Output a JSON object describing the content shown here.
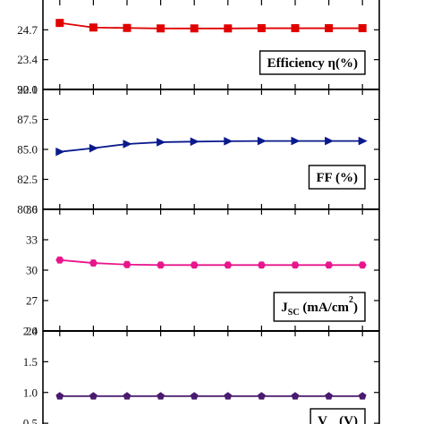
{
  "chart_data": [
    {
      "type": "line",
      "label_parts": [
        {
          "text": "Efficiency  η(%)",
          "style": "normal"
        }
      ],
      "y_ticks": [
        {
          "value": 22.1,
          "label": "22.1"
        },
        {
          "value": 23.4,
          "label": "23.4"
        },
        {
          "value": 24.7,
          "label": "24.7"
        }
      ],
      "ylim": [
        22.1,
        26.0
      ],
      "color": "#e00000",
      "marker": "square",
      "x": [
        1,
        2,
        3,
        4,
        5,
        6,
        7,
        8,
        9,
        10
      ],
      "values": [
        25.0,
        24.8,
        24.78,
        24.76,
        24.76,
        24.76,
        24.77,
        24.77,
        24.77,
        24.77
      ]
    },
    {
      "type": "line",
      "label_parts": [
        {
          "text": "FF (%)",
          "style": "normal"
        }
      ],
      "y_ticks": [
        {
          "value": 80.0,
          "label": "80.0"
        },
        {
          "value": 82.5,
          "label": "82.5"
        },
        {
          "value": 85.0,
          "label": "85.0"
        },
        {
          "value": 87.5,
          "label": "87.5"
        },
        {
          "value": 90.0,
          "label": "90.0"
        }
      ],
      "ylim": [
        80.0,
        90.0
      ],
      "color": "#0a1a8c",
      "marker": "triangle-right",
      "x": [
        1,
        2,
        3,
        4,
        5,
        6,
        7,
        8,
        9,
        10
      ],
      "values": [
        84.8,
        85.1,
        85.45,
        85.6,
        85.65,
        85.68,
        85.7,
        85.7,
        85.7,
        85.7
      ]
    },
    {
      "type": "line",
      "label_parts": [
        {
          "text": "J",
          "style": "normal"
        },
        {
          "text": "SC",
          "style": "sub"
        },
        {
          "text": " (mA/cm",
          "style": "normal"
        },
        {
          "text": "2",
          "style": "sup"
        },
        {
          "text": ")",
          "style": "normal"
        }
      ],
      "y_ticks": [
        {
          "value": 24,
          "label": "24"
        },
        {
          "value": 27,
          "label": "27"
        },
        {
          "value": 30,
          "label": "30"
        },
        {
          "value": 33,
          "label": "33"
        },
        {
          "value": 36,
          "label": "36"
        }
      ],
      "ylim": [
        24,
        36
      ],
      "color": "#e8168c",
      "marker": "hexagon",
      "x": [
        1,
        2,
        3,
        4,
        5,
        6,
        7,
        8,
        9,
        10
      ],
      "values": [
        31.0,
        30.7,
        30.55,
        30.5,
        30.5,
        30.5,
        30.5,
        30.5,
        30.5,
        30.5
      ]
    },
    {
      "type": "line",
      "label_parts": [
        {
          "text": "V",
          "style": "normal"
        },
        {
          "text": "oc",
          "style": "sub"
        },
        {
          "text": " (V)",
          "style": "normal"
        }
      ],
      "y_ticks": [
        {
          "value": 0.5,
          "label": "0.5"
        },
        {
          "value": 1.0,
          "label": "1.0"
        },
        {
          "value": 1.5,
          "label": "1.5"
        },
        {
          "value": 2.0,
          "label": "2.0"
        }
      ],
      "ylim": [
        0.4,
        2.0
      ],
      "color": "#4a1a6e",
      "marker": "pentagon",
      "x": [
        1,
        2,
        3,
        4,
        5,
        6,
        7,
        8,
        9,
        10
      ],
      "values": [
        0.94,
        0.94,
        0.94,
        0.94,
        0.94,
        0.94,
        0.94,
        0.94,
        0.94,
        0.94
      ]
    }
  ]
}
